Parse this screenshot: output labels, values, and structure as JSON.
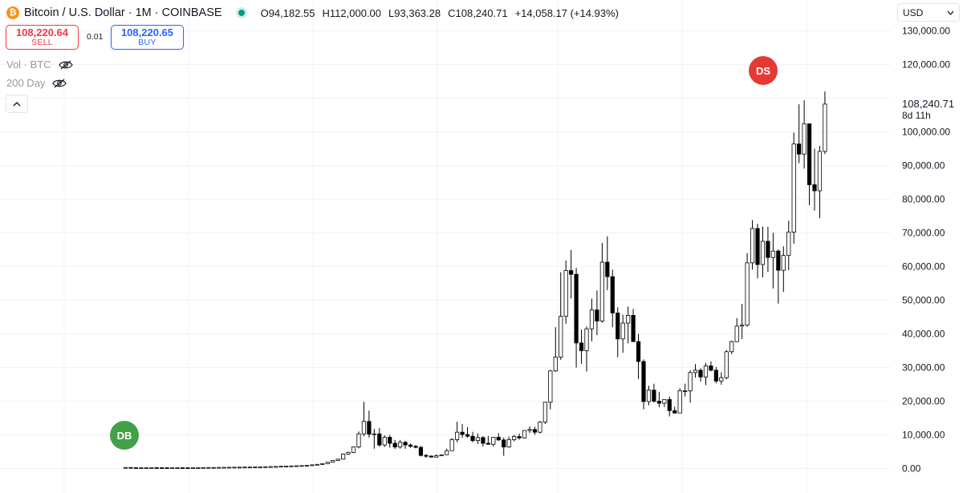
{
  "header": {
    "title": "Bitcoin / U.S. Dollar · 1M · COINBASE",
    "icon": "bitcoin-icon",
    "ohlc": {
      "o_label": "O",
      "o_value": "94,182.55",
      "h_label": "H",
      "h_value": "112,000.00",
      "l_label": "L",
      "l_value": "93,363.28",
      "c_label": "C",
      "c_value": "108,240.71",
      "change": "+14,058.17 (+14.93%)"
    }
  },
  "trade": {
    "sell_price": "108,220.64",
    "sell_label": "SELL",
    "spread": "0.01",
    "buy_price": "108,220.65",
    "buy_label": "BUY"
  },
  "indicators": [
    {
      "label": "Vol · BTC",
      "icon": "eye-hidden-icon"
    },
    {
      "label": "200 Day",
      "icon": "eye-hidden-icon"
    }
  ],
  "currency": {
    "selected": "USD"
  },
  "last_price": {
    "value": "108,240.71",
    "countdown": "8d 11h"
  },
  "markers": {
    "buy": "DB",
    "sell": "DS"
  },
  "colors": {
    "up_body": "#ffffff",
    "down_body": "#000000",
    "wick": "#000000",
    "sell": "#f23645",
    "buy": "#2962ff",
    "marker_buy": "#43a047",
    "marker_sell": "#e53935"
  },
  "chart_data": {
    "type": "candlestick",
    "title": "Bitcoin / U.S. Dollar · 1M · COINBASE",
    "ylim": [
      -1500,
      133000
    ],
    "yticks": [
      0,
      10000,
      20000,
      30000,
      40000,
      50000,
      60000,
      70000,
      80000,
      90000,
      100000,
      110000,
      120000,
      130000
    ],
    "ytick_labels": [
      "0.00",
      "10,000.00",
      "20,000.00",
      "30,000.00",
      "40,000.00",
      "50,000.00",
      "60,000.00",
      "70,000.00",
      "80,000.00",
      "90,000.00",
      "100,000.00",
      "110,000.00",
      "120,000.00",
      "130,000.00"
    ],
    "grid": true,
    "candles": [
      [
        300,
        350,
        250,
        320
      ],
      [
        320,
        340,
        240,
        260
      ],
      [
        260,
        300,
        200,
        230
      ],
      [
        230,
        250,
        210,
        240
      ],
      [
        240,
        270,
        220,
        250
      ],
      [
        250,
        280,
        230,
        270
      ],
      [
        270,
        300,
        240,
        250
      ],
      [
        250,
        270,
        220,
        240
      ],
      [
        240,
        260,
        200,
        220
      ],
      [
        220,
        250,
        210,
        230
      ],
      [
        230,
        260,
        220,
        250
      ],
      [
        250,
        270,
        230,
        240
      ],
      [
        240,
        250,
        220,
        230
      ],
      [
        230,
        260,
        220,
        250
      ],
      [
        250,
        280,
        240,
        270
      ],
      [
        270,
        300,
        260,
        290
      ],
      [
        290,
        330,
        280,
        310
      ],
      [
        310,
        350,
        300,
        320
      ],
      [
        320,
        360,
        300,
        340
      ],
      [
        340,
        380,
        320,
        360
      ],
      [
        360,
        400,
        340,
        380
      ],
      [
        380,
        420,
        360,
        400
      ],
      [
        400,
        440,
        380,
        420
      ],
      [
        420,
        450,
        400,
        430
      ],
      [
        430,
        470,
        410,
        450
      ],
      [
        450,
        500,
        430,
        480
      ],
      [
        480,
        520,
        460,
        510
      ],
      [
        510,
        560,
        490,
        540
      ],
      [
        540,
        600,
        520,
        580
      ],
      [
        580,
        640,
        560,
        620
      ],
      [
        620,
        700,
        600,
        680
      ],
      [
        680,
        760,
        650,
        740
      ],
      [
        740,
        800,
        700,
        780
      ],
      [
        780,
        860,
        750,
        830
      ],
      [
        830,
        900,
        800,
        880
      ],
      [
        880,
        1000,
        850,
        960
      ],
      [
        960,
        1150,
        920,
        1100
      ],
      [
        1100,
        1300,
        1050,
        1250
      ],
      [
        1250,
        1500,
        1200,
        1450
      ],
      [
        1450,
        2000,
        1400,
        1900
      ],
      [
        1900,
        2500,
        1800,
        2400
      ],
      [
        2400,
        2900,
        2300,
        2800
      ],
      [
        2800,
        4500,
        2700,
        4300
      ],
      [
        4300,
        5000,
        4100,
        4800
      ],
      [
        4800,
        6500,
        4600,
        6400
      ],
      [
        6400,
        11000,
        6000,
        10300
      ],
      [
        10300,
        19800,
        9600,
        14000
      ],
      [
        14000,
        17200,
        9200,
        10200
      ],
      [
        10200,
        11800,
        5900,
        10300
      ],
      [
        10300,
        12000,
        6500,
        7000
      ],
      [
        7000,
        9900,
        6400,
        9300
      ],
      [
        9300,
        10000,
        6200,
        7500
      ],
      [
        7500,
        8500,
        5800,
        6400
      ],
      [
        6400,
        8500,
        5900,
        7800
      ],
      [
        7800,
        8200,
        5900,
        7000
      ],
      [
        7000,
        7400,
        6200,
        6600
      ],
      [
        6600,
        7000,
        6000,
        6300
      ],
      [
        6300,
        6700,
        3600,
        3900
      ],
      [
        3900,
        4300,
        3200,
        3700
      ],
      [
        3700,
        3900,
        3400,
        3400
      ],
      [
        3400,
        4200,
        3300,
        3800
      ],
      [
        3800,
        4100,
        3700,
        4100
      ],
      [
        4100,
        5900,
        4100,
        5300
      ],
      [
        5300,
        9100,
        5300,
        8600
      ],
      [
        8600,
        13900,
        7800,
        10800
      ],
      [
        10800,
        13200,
        9100,
        10100
      ],
      [
        10100,
        12300,
        9100,
        9600
      ],
      [
        9600,
        10900,
        7800,
        8300
      ],
      [
        8300,
        10400,
        7300,
        9200
      ],
      [
        9200,
        9600,
        6500,
        7500
      ],
      [
        7500,
        9700,
        7100,
        7200
      ],
      [
        7200,
        9200,
        6500,
        9300
      ],
      [
        9300,
        10500,
        8200,
        8500
      ],
      [
        8500,
        9200,
        3800,
        6400
      ],
      [
        6400,
        9500,
        6200,
        8600
      ],
      [
        8600,
        10000,
        8100,
        9500
      ],
      [
        9500,
        10400,
        8600,
        9100
      ],
      [
        9100,
        11400,
        8900,
        11300
      ],
      [
        11300,
        12500,
        10500,
        11600
      ],
      [
        11600,
        12400,
        10000,
        10800
      ],
      [
        10800,
        14100,
        10400,
        13800
      ],
      [
        13800,
        19500,
        13200,
        19700
      ],
      [
        19700,
        29300,
        17600,
        29000
      ],
      [
        29000,
        42000,
        28700,
        33100
      ],
      [
        33100,
        58300,
        32300,
        45200
      ],
      [
        45200,
        61800,
        43000,
        58800
      ],
      [
        58800,
        64900,
        50500,
        57700
      ],
      [
        57700,
        59600,
        30000,
        37300
      ],
      [
        37300,
        41300,
        31100,
        35000
      ],
      [
        35000,
        42200,
        28800,
        41500
      ],
      [
        41500,
        50500,
        37800,
        47100
      ],
      [
        47100,
        52900,
        39600,
        43800
      ],
      [
        43800,
        67000,
        43300,
        61300
      ],
      [
        61300,
        69000,
        53000,
        57000
      ],
      [
        57000,
        59100,
        42000,
        46200
      ],
      [
        46200,
        47900,
        33100,
        38500
      ],
      [
        38500,
        45700,
        34400,
        43200
      ],
      [
        43200,
        48100,
        37200,
        45500
      ],
      [
        45500,
        47400,
        37700,
        37700
      ],
      [
        37700,
        40000,
        26600,
        31800
      ],
      [
        31800,
        32400,
        17600,
        19900
      ],
      [
        19900,
        24600,
        18800,
        23300
      ],
      [
        23300,
        25200,
        19600,
        20000
      ],
      [
        20000,
        22800,
        18200,
        19400
      ],
      [
        19400,
        20500,
        18300,
        20500
      ],
      [
        20500,
        21400,
        15500,
        17200
      ],
      [
        17200,
        18400,
        16300,
        16500
      ],
      [
        16500,
        23900,
        16500,
        23100
      ],
      [
        23100,
        25200,
        21400,
        23100
      ],
      [
        23100,
        29200,
        19600,
        28500
      ],
      [
        28500,
        31000,
        27000,
        29200
      ],
      [
        29200,
        29800,
        25800,
        27200
      ],
      [
        27200,
        31400,
        24800,
        30500
      ],
      [
        30500,
        31800,
        28900,
        29200
      ],
      [
        29200,
        30200,
        25300,
        26000
      ],
      [
        26000,
        28600,
        24900,
        27000
      ],
      [
        27000,
        35200,
        26500,
        34700
      ],
      [
        34700,
        38000,
        34000,
        37700
      ],
      [
        37700,
        44700,
        37600,
        42300
      ],
      [
        42300,
        48900,
        38500,
        42600
      ],
      [
        42600,
        64000,
        42100,
        61100
      ],
      [
        61100,
        73800,
        59100,
        71300
      ],
      [
        71300,
        72700,
        56500,
        60600
      ],
      [
        60600,
        71900,
        56800,
        67500
      ],
      [
        67500,
        71800,
        58400,
        62700
      ],
      [
        62700,
        70000,
        53500,
        64600
      ],
      [
        64600,
        65100,
        49000,
        58900
      ],
      [
        58900,
        66000,
        52500,
        63300
      ],
      [
        63300,
        73600,
        58900,
        70200
      ],
      [
        70200,
        99800,
        66800,
        96400
      ],
      [
        96400,
        108200,
        90700,
        93400
      ],
      [
        93400,
        109400,
        89100,
        102400
      ],
      [
        102400,
        102500,
        78200,
        84300
      ],
      [
        84300,
        95000,
        76600,
        82500
      ],
      [
        82500,
        95800,
        74400,
        94200
      ],
      [
        94200,
        112000,
        93400,
        108240
      ]
    ]
  }
}
